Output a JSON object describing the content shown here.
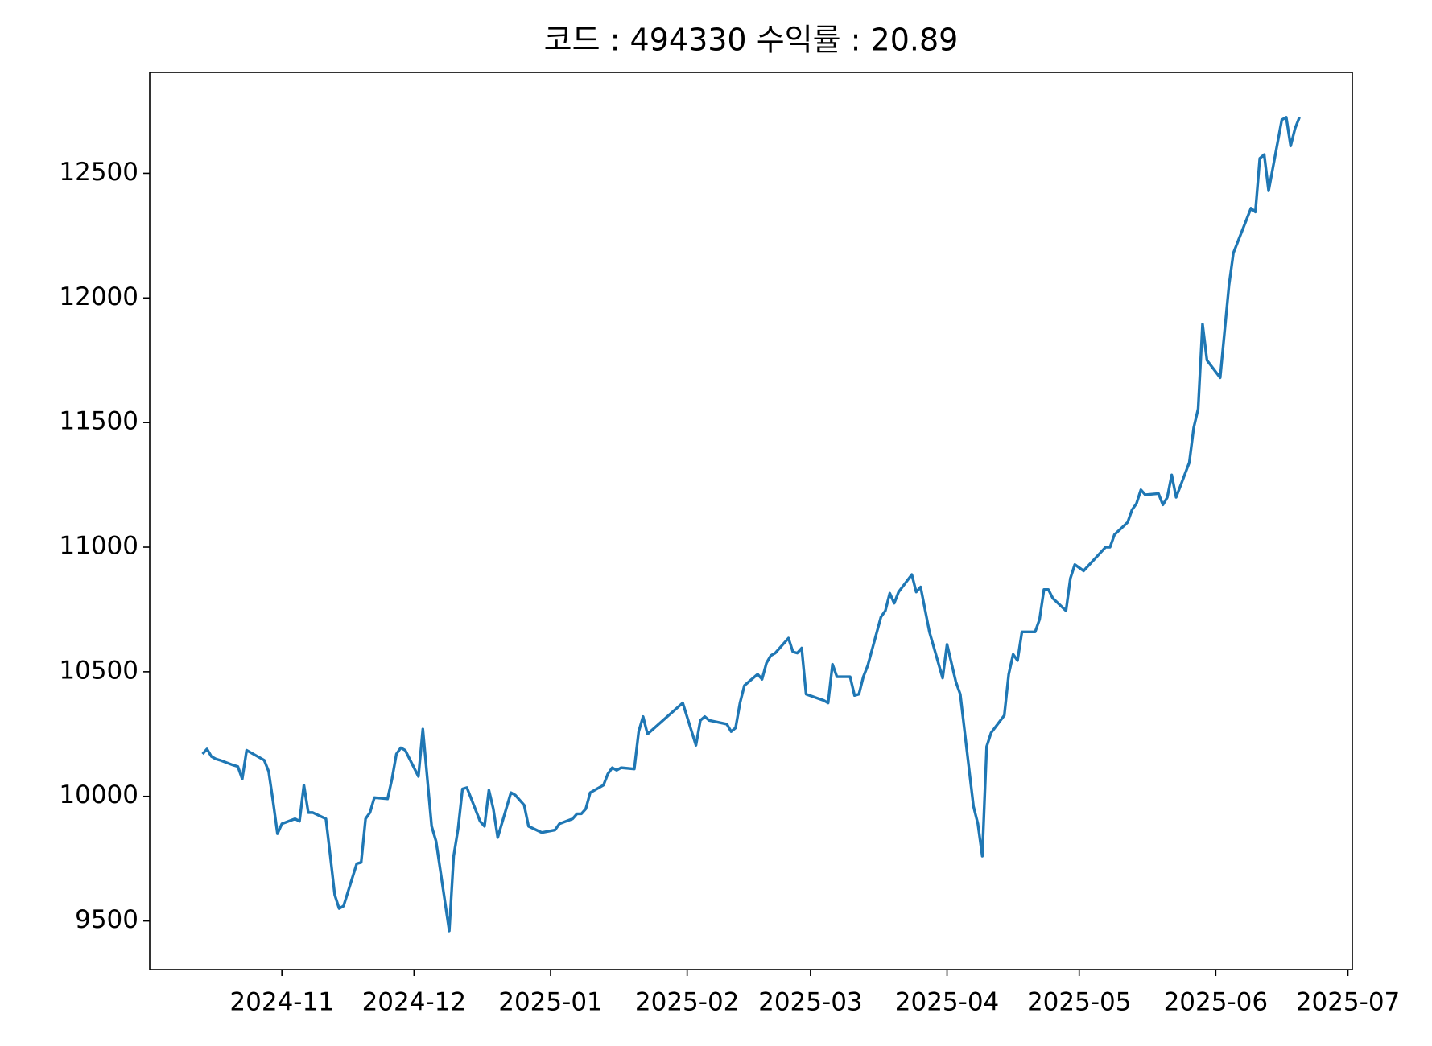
{
  "chart_data": {
    "type": "line",
    "title": "코드 : 494330 수익률 : 20.89",
    "x": [
      "2024-10-14",
      "2024-10-15",
      "2024-10-16",
      "2024-10-17",
      "2024-10-18",
      "2024-10-21",
      "2024-10-22",
      "2024-10-23",
      "2024-10-24",
      "2024-10-28",
      "2024-10-29",
      "2024-10-30",
      "2024-10-31",
      "2024-11-01",
      "2024-11-04",
      "2024-11-05",
      "2024-11-06",
      "2024-11-07",
      "2024-11-08",
      "2024-11-11",
      "2024-11-12",
      "2024-11-13",
      "2024-11-14",
      "2024-11-15",
      "2024-11-18",
      "2024-11-19",
      "2024-11-20",
      "2024-11-21",
      "2024-11-22",
      "2024-11-25",
      "2024-11-26",
      "2024-11-27",
      "2024-11-28",
      "2024-11-29",
      "2024-12-02",
      "2024-12-03",
      "2024-12-05",
      "2024-12-06",
      "2024-12-09",
      "2024-12-10",
      "2024-12-11",
      "2024-12-12",
      "2024-12-13",
      "2024-12-16",
      "2024-12-17",
      "2024-12-18",
      "2024-12-19",
      "2024-12-20",
      "2024-12-23",
      "2024-12-24",
      "2024-12-26",
      "2024-12-27",
      "2024-12-30",
      "2025-01-02",
      "2025-01-03",
      "2025-01-06",
      "2025-01-07",
      "2025-01-08",
      "2025-01-09",
      "2025-01-10",
      "2025-01-13",
      "2025-01-14",
      "2025-01-15",
      "2025-01-16",
      "2025-01-17",
      "2025-01-20",
      "2025-01-21",
      "2025-01-22",
      "2025-01-23",
      "2025-01-31",
      "2025-02-03",
      "2025-02-04",
      "2025-02-05",
      "2025-02-06",
      "2025-02-10",
      "2025-02-11",
      "2025-02-12",
      "2025-02-13",
      "2025-02-14",
      "2025-02-17",
      "2025-02-18",
      "2025-02-19",
      "2025-02-20",
      "2025-02-21",
      "2025-02-24",
      "2025-02-25",
      "2025-02-26",
      "2025-02-27",
      "2025-02-28",
      "2025-03-04",
      "2025-03-05",
      "2025-03-06",
      "2025-03-07",
      "2025-03-10",
      "2025-03-11",
      "2025-03-12",
      "2025-03-13",
      "2025-03-14",
      "2025-03-17",
      "2025-03-18",
      "2025-03-19",
      "2025-03-20",
      "2025-03-21",
      "2025-03-24",
      "2025-03-25",
      "2025-03-26",
      "2025-03-28",
      "2025-03-31",
      "2025-04-01",
      "2025-04-03",
      "2025-04-04",
      "2025-04-07",
      "2025-04-08",
      "2025-04-09",
      "2025-04-10",
      "2025-04-11",
      "2025-04-14",
      "2025-04-15",
      "2025-04-16",
      "2025-04-17",
      "2025-04-18",
      "2025-04-21",
      "2025-04-22",
      "2025-04-23",
      "2025-04-24",
      "2025-04-25",
      "2025-04-28",
      "2025-04-29",
      "2025-04-30",
      "2025-05-02",
      "2025-05-07",
      "2025-05-08",
      "2025-05-09",
      "2025-05-12",
      "2025-05-13",
      "2025-05-14",
      "2025-05-15",
      "2025-05-16",
      "2025-05-19",
      "2025-05-20",
      "2025-05-21",
      "2025-05-22",
      "2025-05-23",
      "2025-05-26",
      "2025-05-27",
      "2025-05-28",
      "2025-05-29",
      "2025-05-30",
      "2025-06-02",
      "2025-06-04",
      "2025-06-05",
      "2025-06-09",
      "2025-06-10",
      "2025-06-11",
      "2025-06-12",
      "2025-06-13",
      "2025-06-16",
      "2025-06-17",
      "2025-06-18",
      "2025-06-19",
      "2025-06-20"
    ],
    "series": [
      {
        "name": "494330",
        "color": "#1f77b4",
        "values": [
          10170,
          10190,
          10160,
          10150,
          10145,
          10125,
          10120,
          10070,
          10185,
          10145,
          10100,
          9980,
          9850,
          9890,
          9910,
          9900,
          10045,
          9935,
          9935,
          9910,
          9760,
          9605,
          9550,
          9560,
          9730,
          9735,
          9910,
          9935,
          9995,
          9990,
          10070,
          10170,
          10195,
          10185,
          10080,
          10270,
          9880,
          9820,
          9460,
          9760,
          9870,
          10030,
          10035,
          9900,
          9880,
          10025,
          9950,
          9835,
          10015,
          10005,
          9965,
          9880,
          9855,
          9865,
          9890,
          9910,
          9930,
          9930,
          9950,
          10015,
          10045,
          10090,
          10115,
          10105,
          10115,
          10110,
          10260,
          10320,
          10250,
          10375,
          10205,
          10305,
          10320,
          10305,
          10290,
          10260,
          10275,
          10375,
          10445,
          10490,
          10470,
          10535,
          10565,
          10575,
          10635,
          10580,
          10575,
          10595,
          10410,
          10385,
          10375,
          10530,
          10480,
          10480,
          10405,
          10410,
          10480,
          10525,
          10720,
          10745,
          10815,
          10775,
          10820,
          10890,
          10820,
          10840,
          10660,
          10475,
          10610,
          10460,
          10410,
          9960,
          9890,
          9760,
          10200,
          10255,
          10325,
          10490,
          10570,
          10545,
          10660,
          10660,
          10710,
          10830,
          10830,
          10795,
          10745,
          10875,
          10930,
          10905,
          11000,
          11000,
          11050,
          11100,
          11150,
          11175,
          11230,
          11210,
          11215,
          11170,
          11200,
          11290,
          11200,
          11340,
          11480,
          11555,
          11895,
          11750,
          11680,
          12050,
          12180,
          12360,
          12345,
          12560,
          12575,
          12430,
          12715,
          12725,
          12610,
          12680,
          12725
        ]
      }
    ],
    "xlim": [
      "2024-10-02",
      "2025-07-02"
    ],
    "xticks": [
      "2024-11",
      "2024-12",
      "2025-01",
      "2025-02",
      "2025-03",
      "2025-04",
      "2025-05",
      "2025-06",
      "2025-07"
    ],
    "ylim": [
      9305,
      12905
    ],
    "yticks": [
      9500,
      10000,
      10500,
      11000,
      11500,
      12000,
      12500
    ],
    "grid": false
  }
}
